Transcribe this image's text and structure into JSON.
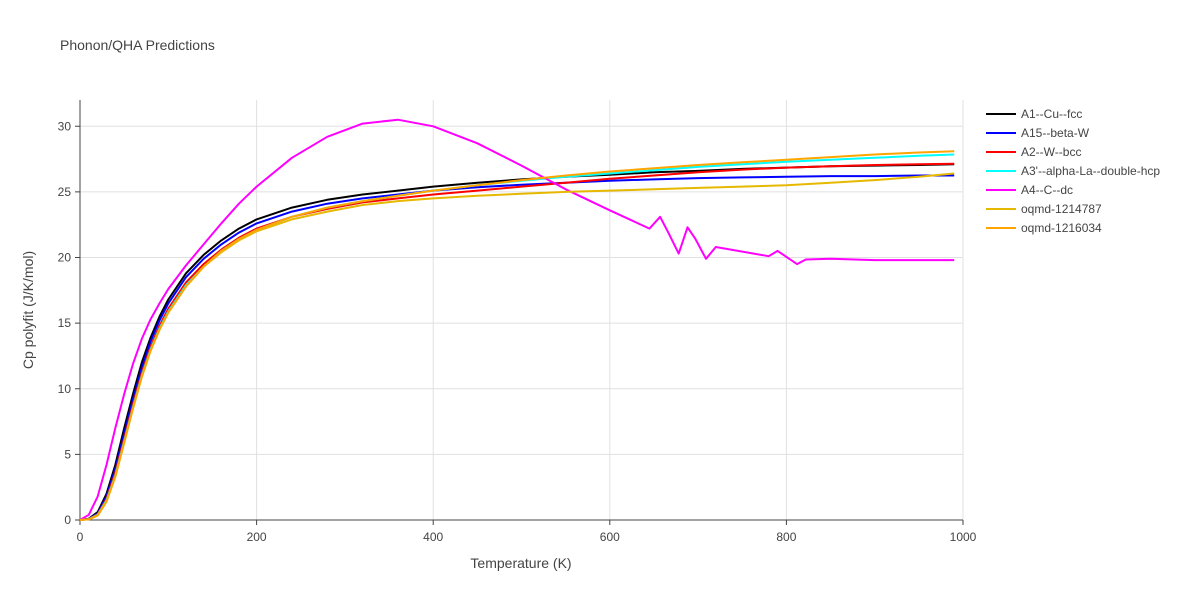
{
  "chart_data": {
    "type": "line",
    "title": "Phonon/QHA Predictions",
    "xlabel": "Temperature (K)",
    "ylabel": "Cp polyfit (J/K/mol)",
    "xlim": [
      0,
      1000
    ],
    "ylim": [
      0,
      32
    ],
    "xticks": [
      0,
      200,
      400,
      600,
      800,
      1000
    ],
    "yticks": [
      0,
      5,
      10,
      15,
      20,
      25,
      30
    ],
    "grid": true,
    "legend_position": "right",
    "x": [
      0,
      10,
      20,
      30,
      40,
      50,
      60,
      70,
      80,
      90,
      100,
      120,
      140,
      160,
      180,
      200,
      240,
      280,
      320,
      360,
      400,
      450,
      500,
      550,
      600,
      650,
      700,
      750,
      800,
      850,
      900,
      950,
      990
    ],
    "series": [
      {
        "name": "A1--Cu--fcc",
        "color": "#000000",
        "y": [
          0,
          0.1,
          0.6,
          2.0,
          4.2,
          7.0,
          9.6,
          12.0,
          13.9,
          15.5,
          16.8,
          18.8,
          20.2,
          21.3,
          22.2,
          22.9,
          23.8,
          24.4,
          24.8,
          25.1,
          25.4,
          25.7,
          25.95,
          26.15,
          26.3,
          26.5,
          26.6,
          26.75,
          26.85,
          26.95,
          27.0,
          27.05,
          27.1
        ]
      },
      {
        "name": "A15--beta-W",
        "color": "#0000ff",
        "y": [
          0,
          0.08,
          0.5,
          1.8,
          3.9,
          6.6,
          9.2,
          11.6,
          13.6,
          15.2,
          16.5,
          18.5,
          19.9,
          21.0,
          21.9,
          22.6,
          23.5,
          24.1,
          24.5,
          24.8,
          25.1,
          25.35,
          25.55,
          25.7,
          25.85,
          25.95,
          26.05,
          26.1,
          26.15,
          26.2,
          26.2,
          26.25,
          26.25
        ]
      },
      {
        "name": "A2--W--bcc",
        "color": "#ff0000",
        "y": [
          0,
          0.07,
          0.45,
          1.6,
          3.6,
          6.2,
          8.8,
          11.2,
          13.2,
          14.8,
          16.1,
          18.1,
          19.5,
          20.6,
          21.5,
          22.2,
          23.1,
          23.7,
          24.2,
          24.5,
          24.8,
          25.1,
          25.4,
          25.7,
          26.0,
          26.25,
          26.5,
          26.7,
          26.85,
          26.95,
          27.05,
          27.1,
          27.15
        ]
      },
      {
        "name": "A3'--alpha-La--double-hcp",
        "color": "#00ffff",
        "y": [
          0,
          0.06,
          0.4,
          1.5,
          3.4,
          6.0,
          8.6,
          11.0,
          13.0,
          14.6,
          15.9,
          17.9,
          19.3,
          20.5,
          21.4,
          22.1,
          23.1,
          23.8,
          24.3,
          24.7,
          25.1,
          25.5,
          25.85,
          26.15,
          26.4,
          26.65,
          26.9,
          27.1,
          27.3,
          27.45,
          27.6,
          27.75,
          27.85
        ]
      },
      {
        "name": "A4--C--dc",
        "color": "#ff00ff",
        "y": [
          0,
          0.4,
          1.8,
          4.2,
          7.0,
          9.6,
          11.9,
          13.8,
          15.3,
          16.5,
          17.6,
          19.4,
          21.0,
          22.6,
          24.1,
          25.4,
          27.6,
          29.2,
          30.2,
          30.5,
          30.0,
          28.7,
          27.0,
          25.2,
          23.6,
          22.3,
          21.2,
          20.4,
          20.0,
          19.9,
          19.8,
          19.8,
          19.8
        ]
      },
      {
        "name": "oqmd-1214787",
        "color": "#e6b800",
        "y": [
          0,
          0.05,
          0.35,
          1.4,
          3.3,
          5.9,
          8.5,
          10.9,
          12.9,
          14.5,
          15.8,
          17.8,
          19.3,
          20.4,
          21.3,
          22.0,
          22.9,
          23.5,
          24.0,
          24.3,
          24.5,
          24.7,
          24.85,
          25.0,
          25.1,
          25.2,
          25.3,
          25.4,
          25.5,
          25.7,
          25.9,
          26.15,
          26.4
        ]
      },
      {
        "name": "oqmd-1216034",
        "color": "#ffa500",
        "y": [
          0,
          0.05,
          0.35,
          1.4,
          3.3,
          5.9,
          8.5,
          10.9,
          12.9,
          14.5,
          15.8,
          17.8,
          19.3,
          20.5,
          21.4,
          22.1,
          23.1,
          23.8,
          24.3,
          24.7,
          25.1,
          25.5,
          25.9,
          26.25,
          26.55,
          26.8,
          27.05,
          27.25,
          27.45,
          27.65,
          27.85,
          28.0,
          28.1
        ]
      }
    ],
    "glitches": {
      "series": "A4--C--dc",
      "points": [
        [
          645,
          22.2
        ],
        [
          657,
          23.1
        ],
        [
          667,
          21.8
        ],
        [
          678,
          20.3
        ],
        [
          688,
          22.3
        ],
        [
          697,
          21.4
        ],
        [
          709,
          19.9
        ],
        [
          720,
          20.8
        ],
        [
          780,
          20.1
        ],
        [
          790,
          20.5
        ],
        [
          812,
          19.5
        ],
        [
          822,
          19.85
        ]
      ]
    }
  }
}
